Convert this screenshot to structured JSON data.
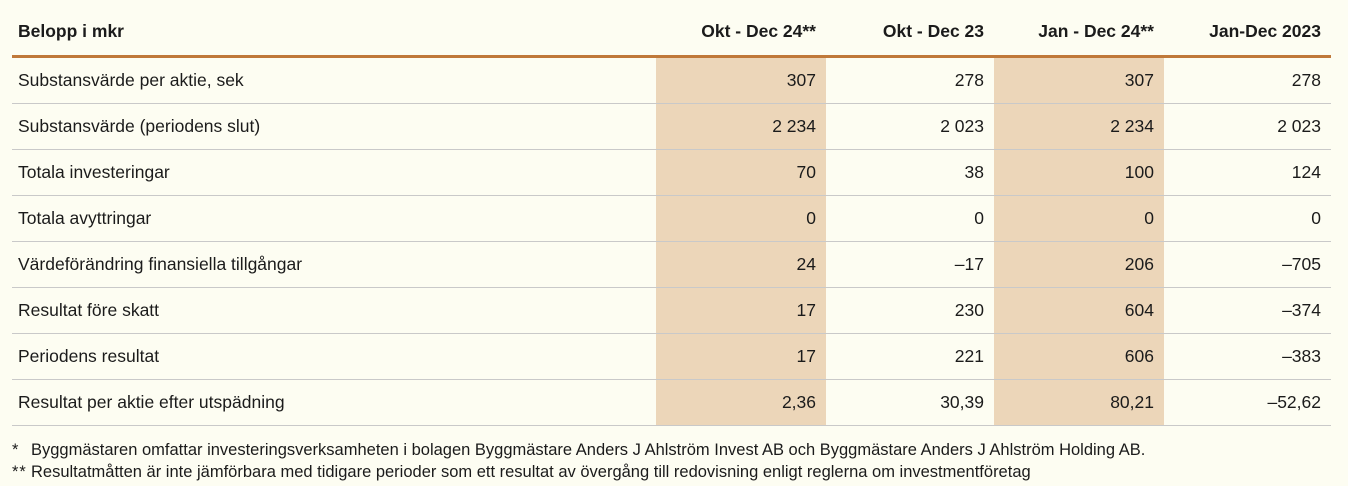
{
  "table": {
    "label_header": "Belopp i mkr",
    "columns": [
      {
        "label": "Okt - Dec 24**",
        "highlight": true
      },
      {
        "label": "Okt - Dec 23",
        "highlight": false
      },
      {
        "label": "Jan - Dec 24**",
        "highlight": true
      },
      {
        "label": "Jan-Dec 2023",
        "highlight": false
      }
    ],
    "rows": [
      {
        "label": "Substansvärde per aktie, sek",
        "values": [
          "307",
          "278",
          "307",
          "278"
        ]
      },
      {
        "label": "Substansvärde (periodens slut)",
        "values": [
          "2 234",
          "2 023",
          "2 234",
          "2 023"
        ]
      },
      {
        "label": "Totala investeringar",
        "values": [
          "70",
          "38",
          "100",
          "124"
        ]
      },
      {
        "label": "Totala avyttringar",
        "values": [
          "0",
          "0",
          "0",
          "0"
        ]
      },
      {
        "label": "Värdeförändring finansiella tillgångar",
        "values": [
          "24",
          "–17",
          "206",
          "–705"
        ]
      },
      {
        "label": "Resultat före skatt",
        "values": [
          "17",
          "230",
          "604",
          "–374"
        ]
      },
      {
        "label": "Periodens resultat",
        "values": [
          "17",
          "221",
          "606",
          "–383"
        ]
      },
      {
        "label": "Resultat per aktie efter utspädning",
        "values": [
          "2,36",
          "30,39",
          "80,21",
          "–52,62"
        ]
      }
    ]
  },
  "footnotes": [
    {
      "marker": "*",
      "text": "Byggmästaren omfattar investeringsverksamheten i bolagen Byggmästare Anders J Ahlström Invest AB och Byggmästare Anders J Ahlström Holding AB."
    },
    {
      "marker": "**",
      "text": "Resultatmåtten är inte jämförbara med tidigare perioder som ett resultat av övergång till redovisning enligt reglerna om investmentföretag"
    }
  ],
  "colors": {
    "background": "#fdfdf2",
    "column_highlight": "#ecd6b9",
    "header_rule": "#c0793a",
    "row_rule": "#c9c9c9",
    "text": "#1b1b1b"
  }
}
